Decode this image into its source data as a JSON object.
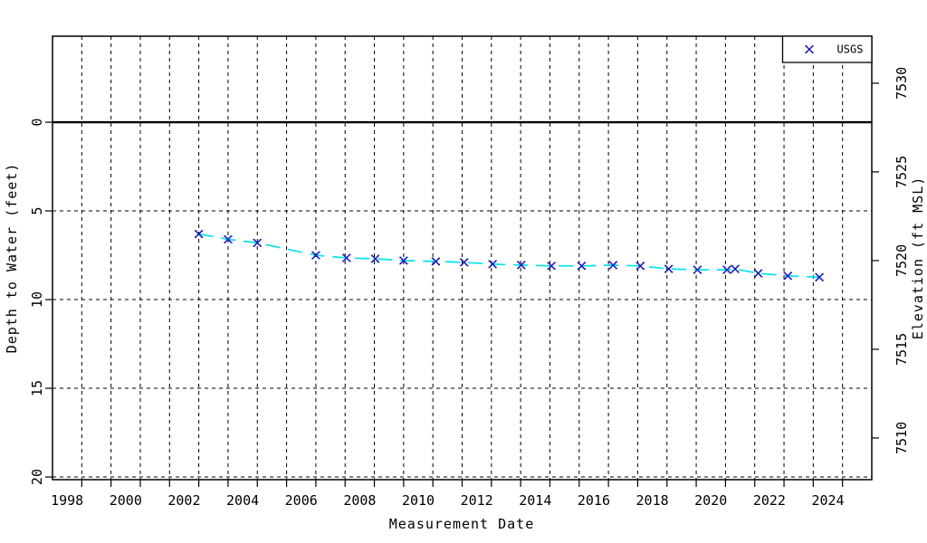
{
  "chart_data": {
    "type": "line",
    "title": "",
    "xlabel": "Measurement Date",
    "ylabel_left": "Depth to Water (feet)",
    "ylabel_right": "Elevation (ft MSL)",
    "x_range": [
      1998,
      2026
    ],
    "x_grid_interval_years": 1,
    "x_tick_labels": [
      "1998",
      "2000",
      "2002",
      "2004",
      "2006",
      "2008",
      "2010",
      "2012",
      "2014",
      "2016",
      "2018",
      "2020",
      "2022",
      "2024"
    ],
    "y_range_depth": [
      -4.85,
      20.15
    ],
    "y_ticks_left_depth": [
      0,
      5,
      10,
      15,
      20
    ],
    "y_ticks_left_labels": [
      "0",
      "5",
      "10",
      "15",
      "20"
    ],
    "y_gridlines_depth": [
      5,
      10,
      15,
      20
    ],
    "zero_reference_depth": 0,
    "y_ticks_right_elevation": [
      7530,
      7525,
      7520,
      7515,
      7510
    ],
    "y_ticks_right_labels": [
      "7530",
      "7525",
      "7520",
      "7515",
      "7510"
    ],
    "right_axis_datum_ft": 7527.8,
    "grid_on": true,
    "legend": {
      "position": "top-right",
      "entries": [
        "USGS"
      ]
    },
    "colors": {
      "line": "#00E4EC",
      "marker": "#1414CC",
      "grid": "#000000",
      "axis": "#000000",
      "background": "#ffffff"
    },
    "series": [
      {
        "name": "USGS",
        "marker": "x",
        "line_style": "dashed",
        "points": [
          {
            "t": 2003.0,
            "depth": 6.3
          },
          {
            "t": 2004.0,
            "depth": 6.6
          },
          {
            "t": 2005.0,
            "depth": 6.8
          },
          {
            "t": 2007.0,
            "depth": 7.5
          },
          {
            "t": 2008.05,
            "depth": 7.65
          },
          {
            "t": 2009.03,
            "depth": 7.7
          },
          {
            "t": 2010.0,
            "depth": 7.8
          },
          {
            "t": 2011.1,
            "depth": 7.85
          },
          {
            "t": 2012.07,
            "depth": 7.9
          },
          {
            "t": 2013.04,
            "depth": 8.0
          },
          {
            "t": 2014.02,
            "depth": 8.05
          },
          {
            "t": 2015.05,
            "depth": 8.1
          },
          {
            "t": 2016.08,
            "depth": 8.1
          },
          {
            "t": 2017.16,
            "depth": 8.06
          },
          {
            "t": 2018.09,
            "depth": 8.1
          },
          {
            "t": 2019.06,
            "depth": 8.27
          },
          {
            "t": 2020.04,
            "depth": 8.32
          },
          {
            "t": 2021.05,
            "depth": 8.32
          },
          {
            "t": 2021.33,
            "depth": 8.27
          },
          {
            "t": 2022.12,
            "depth": 8.52
          },
          {
            "t": 2023.13,
            "depth": 8.66
          },
          {
            "t": 2024.21,
            "depth": 8.74
          }
        ]
      }
    ]
  }
}
